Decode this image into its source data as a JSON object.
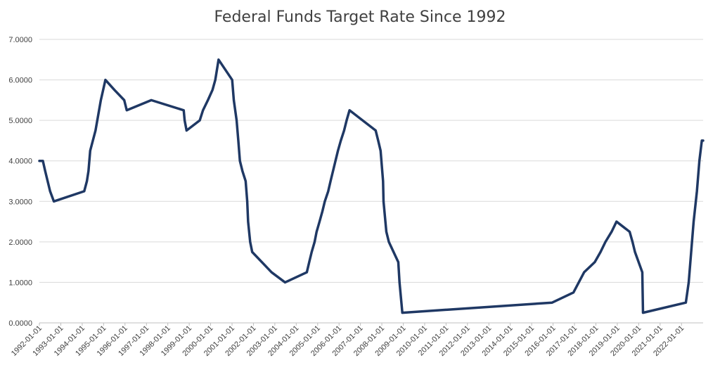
{
  "chart_data": {
    "type": "line",
    "title": "Federal Funds Target Rate Since 1992",
    "xlabel": "",
    "ylabel": "",
    "ylim": [
      0,
      7
    ],
    "y_ticks": [
      "0.0000",
      "1.0000",
      "2.0000",
      "3.0000",
      "4.0000",
      "5.0000",
      "6.0000",
      "7.0000"
    ],
    "x_ticks": [
      "1992-01-01",
      "1993-01-01",
      "1994-01-01",
      "1995-01-01",
      "1996-01-01",
      "1997-01-01",
      "1998-01-01",
      "1999-01-01",
      "2000-01-01",
      "2001-01-01",
      "2002-01-01",
      "2003-01-01",
      "2004-01-01",
      "2005-01-01",
      "2006-01-01",
      "2007-01-01",
      "2008-01-01",
      "2009-01-01",
      "2010-01-01",
      "2011-01-01",
      "2012-01-01",
      "2013-01-01",
      "2014-01-01",
      "2015-01-01",
      "2016-01-01",
      "2017-01-01",
      "2018-01-01",
      "2019-01-01",
      "2020-01-01",
      "2021-01-01",
      "2022-01-01"
    ],
    "grid": true,
    "line_color": "#1f3864",
    "series": [
      {
        "name": "",
        "x": [
          "1992-01-01",
          "1992-03-01",
          "1992-04-09",
          "1992-07-02",
          "1992-09-04",
          "1994-02-04",
          "1994-03-22",
          "1994-04-18",
          "1994-05-17",
          "1994-08-16",
          "1994-11-15",
          "1995-02-01",
          "1995-07-06",
          "1995-12-19",
          "1996-01-31",
          "1997-03-25",
          "1998-09-29",
          "1998-10-15",
          "1998-11-17",
          "1999-06-30",
          "1999-08-24",
          "1999-11-16",
          "2000-02-02",
          "2000-03-21",
          "2000-05-16",
          "2001-01-03",
          "2001-01-31",
          "2001-03-20",
          "2001-04-18",
          "2001-05-15",
          "2001-06-27",
          "2001-08-21",
          "2001-09-17",
          "2001-10-02",
          "2001-11-06",
          "2001-12-11",
          "2002-11-06",
          "2003-06-25",
          "2004-06-30",
          "2004-08-10",
          "2004-09-21",
          "2004-11-10",
          "2004-12-14",
          "2005-02-02",
          "2005-03-22",
          "2005-05-03",
          "2005-06-30",
          "2005-08-09",
          "2005-09-20",
          "2005-11-01",
          "2005-12-13",
          "2006-01-31",
          "2006-03-28",
          "2006-05-10",
          "2006-06-29",
          "2007-09-18",
          "2007-10-31",
          "2007-12-11",
          "2008-01-22",
          "2008-01-30",
          "2008-03-18",
          "2008-04-30",
          "2008-10-08",
          "2008-10-29",
          "2008-12-16",
          "2015-12-16",
          "2016-12-14",
          "2017-03-15",
          "2017-06-14",
          "2017-12-13",
          "2018-03-21",
          "2018-06-13",
          "2018-09-26",
          "2018-12-19",
          "2019-07-31",
          "2019-09-18",
          "2019-10-30",
          "2020-03-03",
          "2020-03-15",
          "2022-03-16",
          "2022-05-04",
          "2022-06-15",
          "2022-07-27",
          "2022-09-21",
          "2022-11-02",
          "2022-12-14",
          "2023-01-05"
        ],
        "values": [
          4.0,
          4.0,
          3.75,
          3.25,
          3.0,
          3.25,
          3.5,
          3.75,
          4.25,
          4.75,
          5.5,
          6.0,
          5.75,
          5.5,
          5.25,
          5.5,
          5.25,
          5.0,
          4.75,
          5.0,
          5.25,
          5.5,
          5.75,
          6.0,
          6.5,
          6.0,
          5.5,
          5.0,
          4.5,
          4.0,
          3.75,
          3.5,
          3.0,
          2.5,
          2.0,
          1.75,
          1.25,
          1.0,
          1.25,
          1.5,
          1.75,
          2.0,
          2.25,
          2.5,
          2.75,
          3.0,
          3.25,
          3.5,
          3.75,
          4.0,
          4.25,
          4.5,
          4.75,
          5.0,
          5.25,
          4.75,
          4.5,
          4.25,
          3.5,
          3.0,
          2.25,
          2.0,
          1.5,
          1.0,
          0.25,
          0.5,
          0.75,
          1.0,
          1.25,
          1.5,
          1.75,
          2.0,
          2.25,
          2.5,
          2.25,
          2.0,
          1.75,
          1.25,
          0.25,
          0.5,
          1.0,
          1.75,
          2.5,
          3.25,
          4.0,
          4.5,
          4.5
        ]
      }
    ]
  }
}
